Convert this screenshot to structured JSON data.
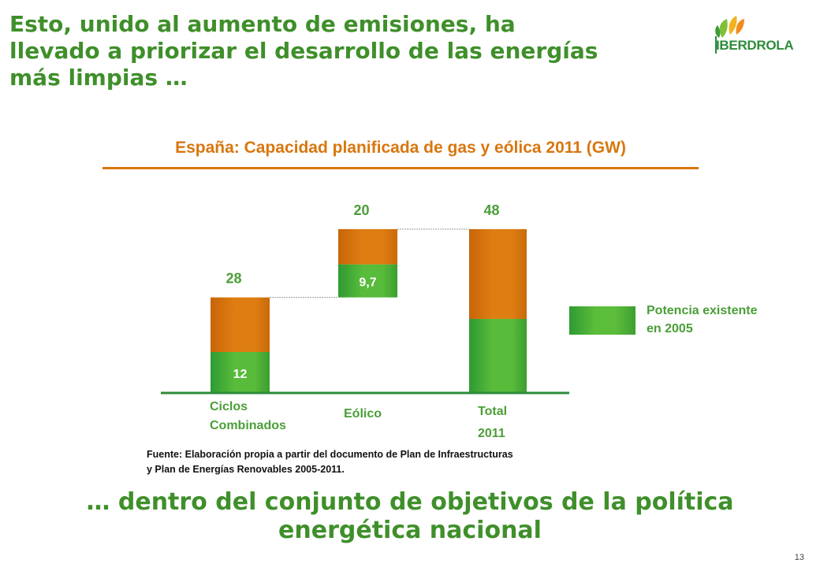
{
  "slide": {
    "title": "Esto, unido al aumento de emisiones, ha\nllevado a priorizar el desarrollo de las energías\nmás limpias …",
    "logo_text": "IBERDROLA",
    "chart_title": "España: Capacidad planificada de gas y eólica 2011 (GW)",
    "legend_label": "Potencia existente\nen 2005",
    "source": "Fuente: Elaboración propia a partir del documento de Plan de Infraestructuras\n y Plan de Energías Renovables  2005-2011.",
    "subtitle": "… dentro del conjunto de objetivos de la política\nenergética nacional",
    "page_number": "13"
  },
  "colors": {
    "green_title": "#3f8f2a",
    "orange": "#d9760e",
    "green_bar": "#4fb538"
  },
  "chart_data": {
    "type": "bar",
    "subtype": "waterfall-stacked",
    "title": "España: Capacidad planificada de gas y eólica 2011 (GW)",
    "categories": [
      "Ciclos\nCombinados",
      "Eólico",
      "Total\n2011"
    ],
    "totals": [
      28,
      20,
      48
    ],
    "total_labels": [
      "28",
      "20",
      "48"
    ],
    "bases": [
      0,
      28,
      0
    ],
    "series": [
      {
        "name": "Potencia existente en 2005",
        "values": [
          12,
          9.7,
          21.7
        ],
        "labels": [
          "12",
          "9,7",
          ""
        ]
      },
      {
        "values": [
          16,
          10.3,
          26.3
        ]
      }
    ],
    "ylim": [
      0,
      48
    ],
    "grid": false,
    "legend_position": "right"
  }
}
